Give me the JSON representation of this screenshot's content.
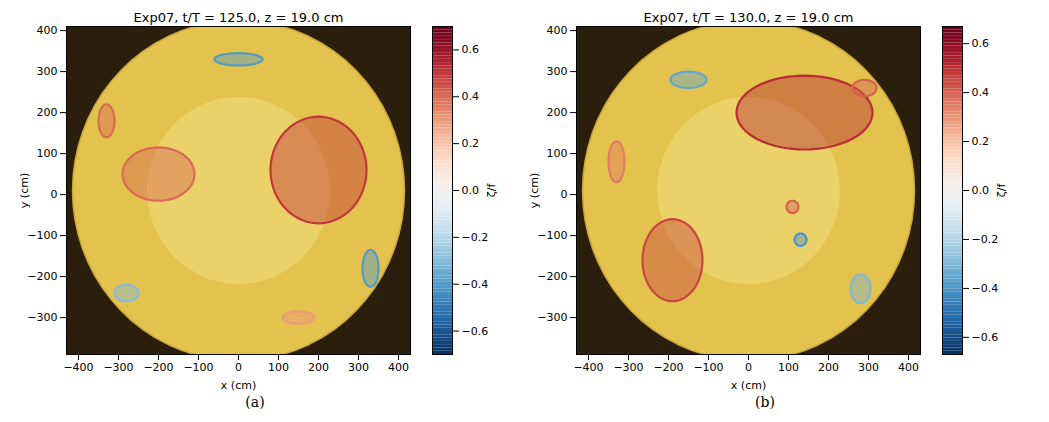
{
  "chart_data": [
    {
      "type": "contour_image",
      "title": "Exp07, t/T = 125.0, z = 19.0 cm",
      "panel": "(a)",
      "x_label": "x (cm)",
      "y_label": "y (cm)",
      "xlim": [
        -430,
        430
      ],
      "ylim": [
        -390,
        410
      ],
      "xticks": [
        {
          "value": -400,
          "label": "−400"
        },
        {
          "value": -300,
          "label": "−300"
        },
        {
          "value": -200,
          "label": "−200"
        },
        {
          "value": -100,
          "label": "−100"
        },
        0,
        100,
        200,
        300,
        400
      ],
      "yticks": [
        {
          "value": -300,
          "label": "−300"
        },
        {
          "value": -200,
          "label": "−200"
        },
        {
          "value": -100,
          "label": "−100"
        },
        0,
        100,
        200,
        300,
        400
      ],
      "colorbar": {
        "label": "ζ/f",
        "range": [
          -0.7,
          0.7
        ],
        "ticks": [
          {
            "value": -0.6,
            "label": "−0.6"
          },
          {
            "value": -0.4,
            "label": "−0.4"
          },
          {
            "value": -0.2,
            "label": "−0.2"
          },
          {
            "value": 0,
            "label": "0.0"
          },
          0.2,
          0.4,
          0.6
        ]
      },
      "tank": {
        "center": [
          0,
          10
        ],
        "radius": 415
      },
      "vortices": [
        {
          "x": 200,
          "y": 60,
          "rx": 120,
          "ry": 130,
          "value": 0.5
        },
        {
          "x": -200,
          "y": 50,
          "rx": 90,
          "ry": 65,
          "value": 0.4
        },
        {
          "x": 0,
          "y": 330,
          "rx": 60,
          "ry": 15,
          "value": -0.4
        },
        {
          "x": -330,
          "y": 180,
          "rx": 20,
          "ry": 40,
          "value": 0.4
        },
        {
          "x": 330,
          "y": -180,
          "rx": 20,
          "ry": 45,
          "value": -0.4
        },
        {
          "x": -280,
          "y": -240,
          "rx": 30,
          "ry": 20,
          "value": -0.3
        },
        {
          "x": 150,
          "y": -300,
          "rx": 40,
          "ry": 15,
          "value": 0.3
        }
      ]
    },
    {
      "type": "contour_image",
      "title": "Exp07, t/T = 130.0, z = 19.0 cm",
      "panel": "(b)",
      "x_label": "x (cm)",
      "y_label": "y (cm)",
      "xlim": [
        -430,
        430
      ],
      "ylim": [
        -390,
        410
      ],
      "xticks": [
        {
          "value": -400,
          "label": "−400"
        },
        {
          "value": -300,
          "label": "−300"
        },
        {
          "value": -200,
          "label": "−200"
        },
        {
          "value": -100,
          "label": "−100"
        },
        0,
        100,
        200,
        300,
        400
      ],
      "yticks": [
        {
          "value": -300,
          "label": "−300"
        },
        {
          "value": -200,
          "label": "−200"
        },
        {
          "value": -100,
          "label": "−100"
        },
        0,
        100,
        200,
        300,
        400
      ],
      "colorbar": {
        "label": "ζ/f",
        "range": [
          -0.67,
          0.67
        ],
        "ticks": [
          {
            "value": -0.6,
            "label": "−0.6"
          },
          {
            "value": -0.4,
            "label": "−0.4"
          },
          {
            "value": -0.2,
            "label": "−0.2"
          },
          {
            "value": 0,
            "label": "0.0"
          },
          0.2,
          0.4,
          0.6
        ]
      },
      "tank": {
        "center": [
          0,
          10
        ],
        "radius": 415
      },
      "vortices": [
        {
          "x": 140,
          "y": 200,
          "rx": 170,
          "ry": 90,
          "value": 0.5
        },
        {
          "x": -190,
          "y": -160,
          "rx": 75,
          "ry": 100,
          "value": 0.45
        },
        {
          "x": 290,
          "y": 260,
          "rx": 30,
          "ry": 20,
          "value": 0.4
        },
        {
          "x": 110,
          "y": -30,
          "rx": 15,
          "ry": 15,
          "value": 0.4
        },
        {
          "x": 130,
          "y": -110,
          "rx": 15,
          "ry": 15,
          "value": -0.4
        },
        {
          "x": -150,
          "y": 280,
          "rx": 45,
          "ry": 20,
          "value": -0.35
        },
        {
          "x": 280,
          "y": -230,
          "rx": 25,
          "ry": 35,
          "value": -0.3
        },
        {
          "x": -330,
          "y": 80,
          "rx": 20,
          "ry": 50,
          "value": 0.35
        }
      ]
    }
  ]
}
